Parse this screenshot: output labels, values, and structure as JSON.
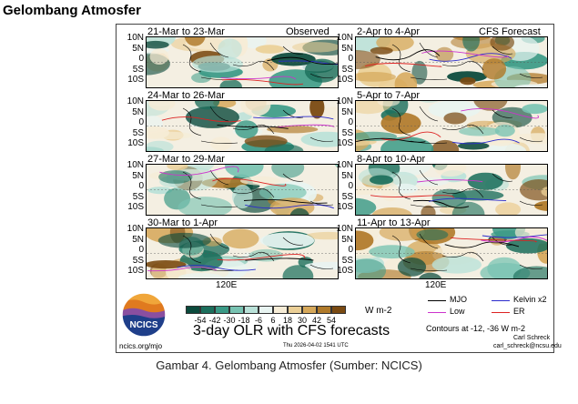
{
  "page_title": "Gelombang Atmosfer",
  "figure": {
    "observed_label": "Observed",
    "forecast_label": "CFS Forecast",
    "lat_labels": [
      "10N",
      "5N",
      "0",
      "5S",
      "10S"
    ],
    "x_label": "120E",
    "observed_panels": [
      "21-Mar to 23-Mar",
      "24-Mar to 26-Mar",
      "27-Mar to 29-Mar",
      "30-Mar to 1-Apr"
    ],
    "forecast_panels": [
      "2-Apr to 4-Apr",
      "5-Apr to 7-Apr",
      "8-Apr to 10-Apr",
      "11-Apr to 13-Apr"
    ],
    "colorbar": {
      "ticks": [
        "-54",
        "-42",
        "-30",
        "-18",
        "-6",
        "6",
        "18",
        "30",
        "42",
        "54"
      ],
      "units": "W m-2",
      "colors": [
        "#0b4a3c",
        "#1c6f5c",
        "#3a9a86",
        "#78c3b2",
        "#b9e1d8",
        "#e8f4f1",
        "#f6ecd6",
        "#ebcf96",
        "#d6a85a",
        "#b07a2a",
        "#7a4a12"
      ]
    },
    "main_title": "3-day OLR with CFS forecasts",
    "logo_text": "NCICS",
    "url": "ncics.org/mjo",
    "timestamp": "Thu 2026-04-02 1541 UTC",
    "legend": {
      "items": [
        {
          "label": "MJO",
          "color": "#000000"
        },
        {
          "label": "Kelvin x2",
          "color": "#2b2bcc"
        },
        {
          "label": "Low",
          "color": "#cc33cc"
        },
        {
          "label": "ER",
          "color": "#dd2222"
        }
      ],
      "contours": "Contours at -12, -36 W m-2",
      "author": "Carl Schreck",
      "email": "carl_schreck@ncsu.edu"
    }
  },
  "caption": "Gambar 4. Gelombang Atmosfer (Sumber: NCICS)"
}
